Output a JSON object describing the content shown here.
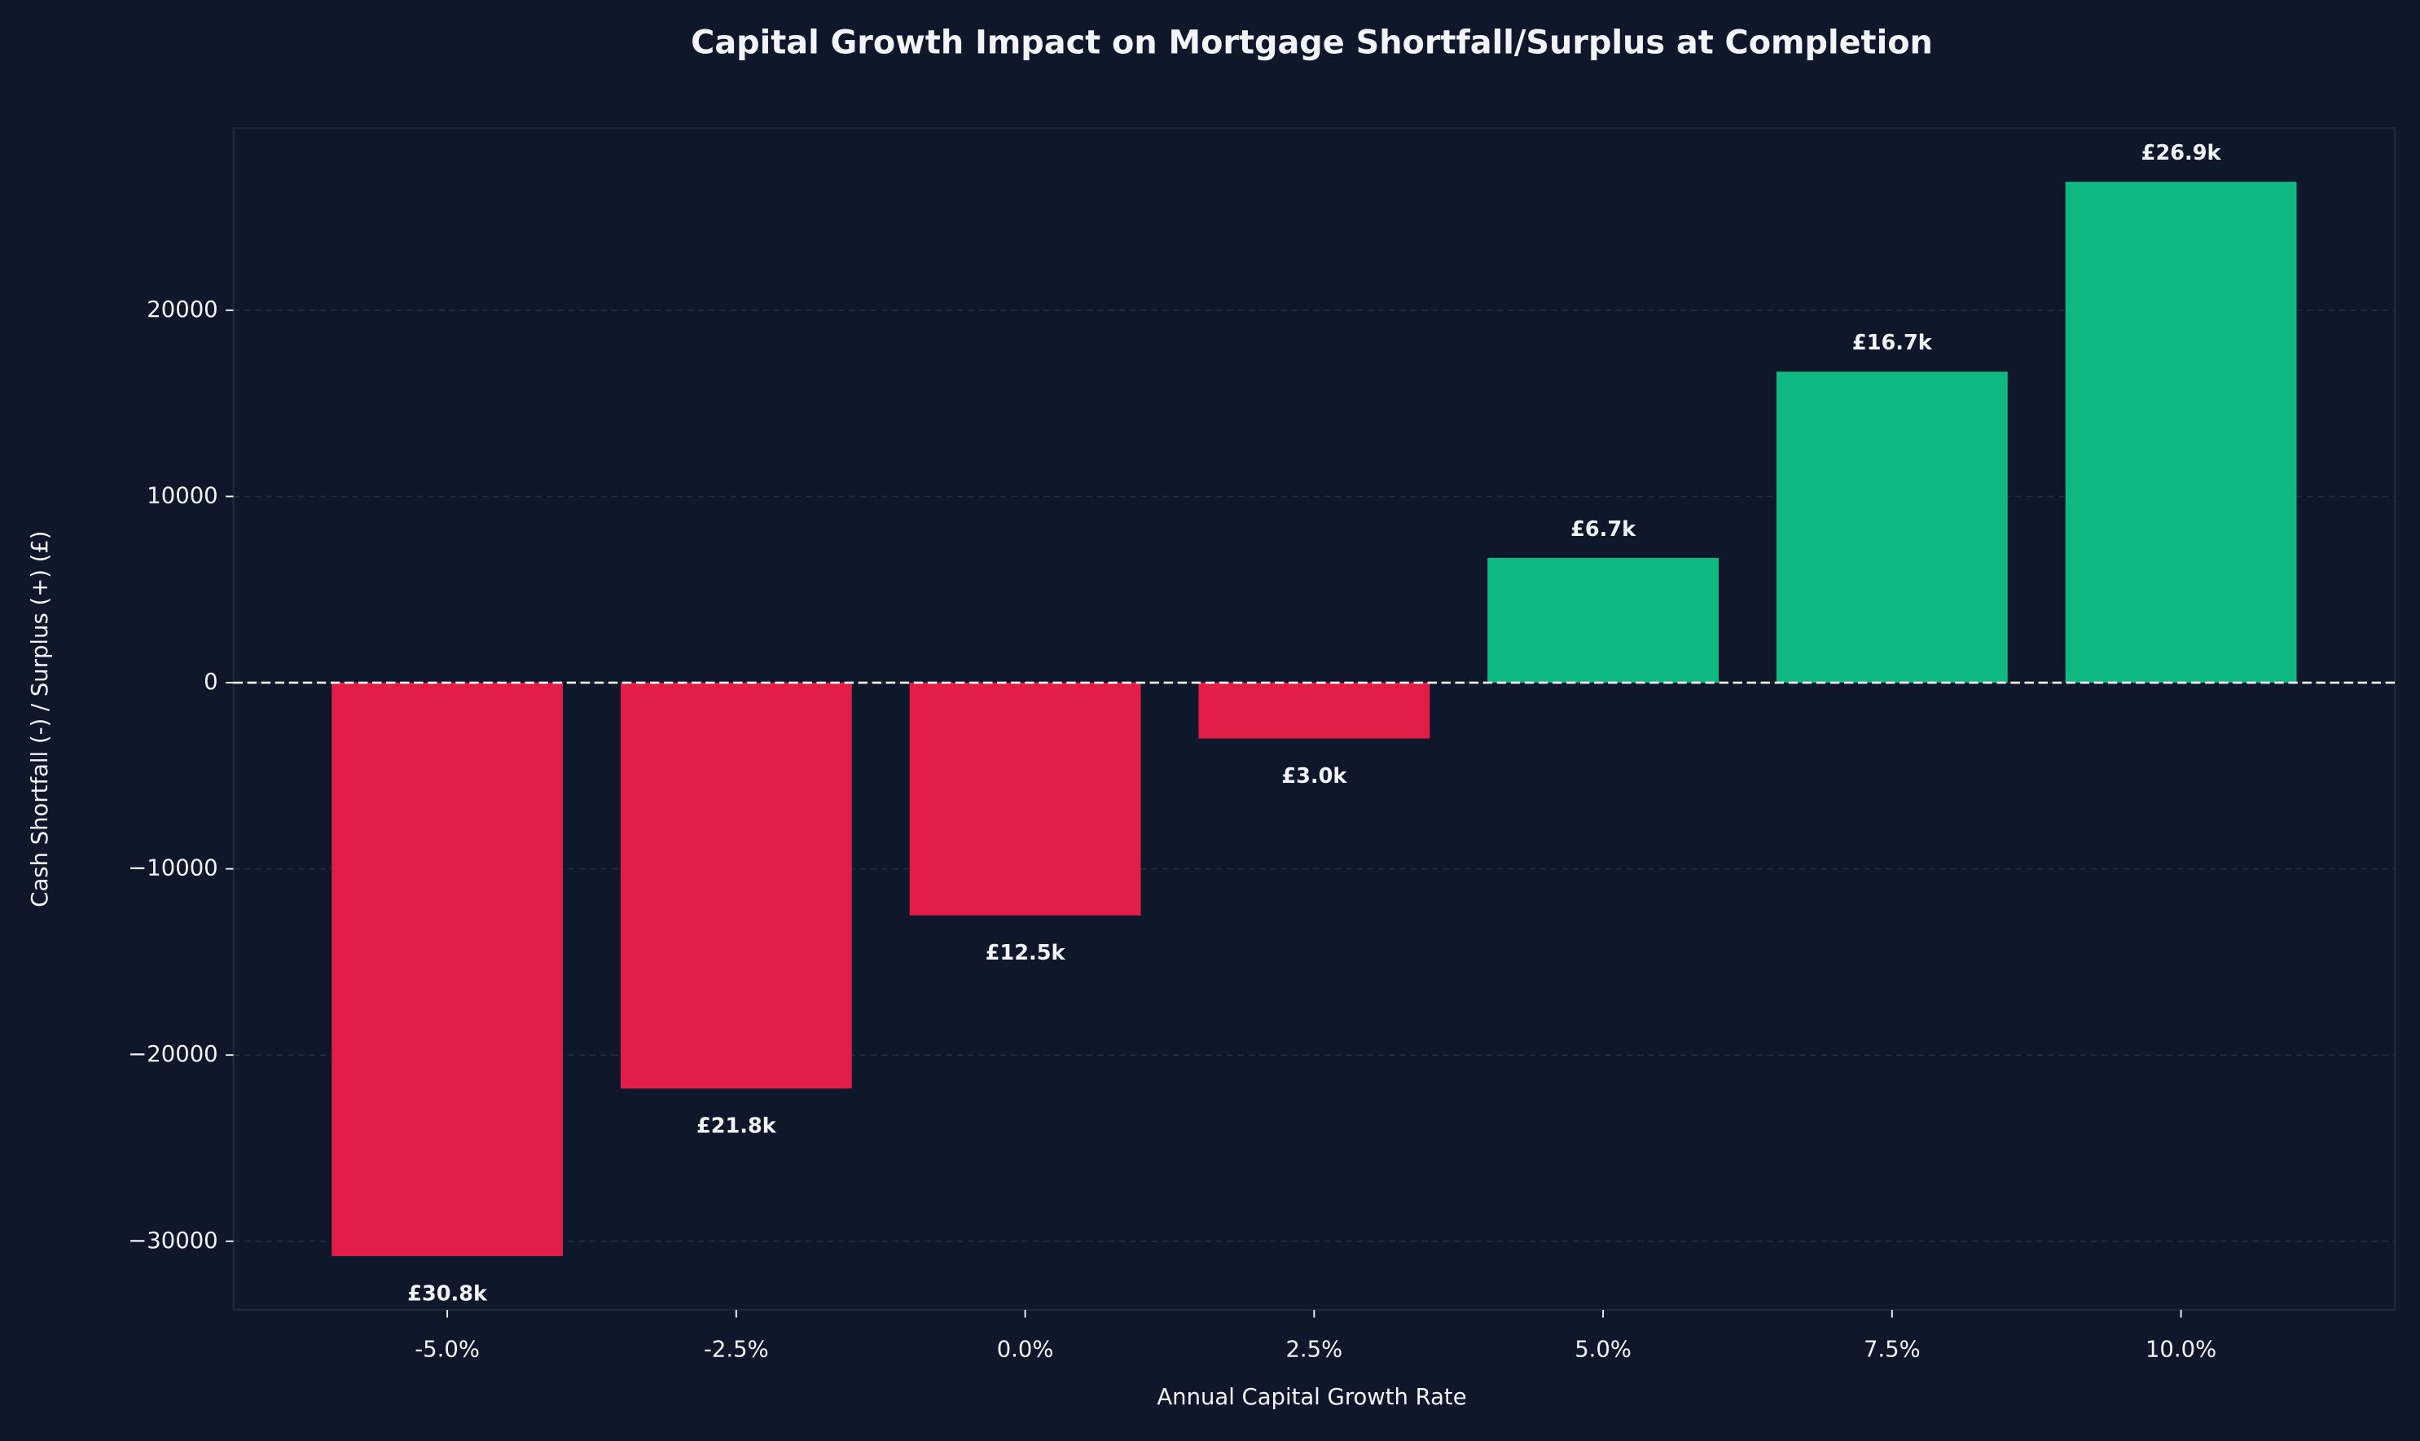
{
  "chart_data": {
    "type": "bar",
    "title": "Capital Growth Impact on Mortgage Shortfall/Surplus at Completion",
    "x_label": "Annual Capital Growth Rate",
    "y_label": "Cash Shortfall (-) / Surplus (+) (£)",
    "categories": [
      "-5.0%",
      "-2.5%",
      "0.0%",
      "2.5%",
      "5.0%",
      "7.5%",
      "10.0%"
    ],
    "values": [
      -30800,
      -21800,
      -12500,
      -3000,
      6700,
      16700,
      26900
    ],
    "value_labels": [
      "£30.8k",
      "£21.8k",
      "£12.5k",
      "£3.0k",
      "£6.7k",
      "£16.7k",
      "£26.9k"
    ],
    "colors": [
      "#e11d48",
      "#e11d48",
      "#e11d48",
      "#e11d48",
      "#10b981",
      "#10b981",
      "#10b981"
    ],
    "ylim": [
      -33685,
      29785
    ],
    "yticks": [
      {
        "value": -30000,
        "label": "−30000"
      },
      {
        "value": -20000,
        "label": "−20000"
      },
      {
        "value": -10000,
        "label": "−10000"
      },
      0,
      10000,
      20000
    ],
    "reference_line": 0,
    "grid": true
  }
}
